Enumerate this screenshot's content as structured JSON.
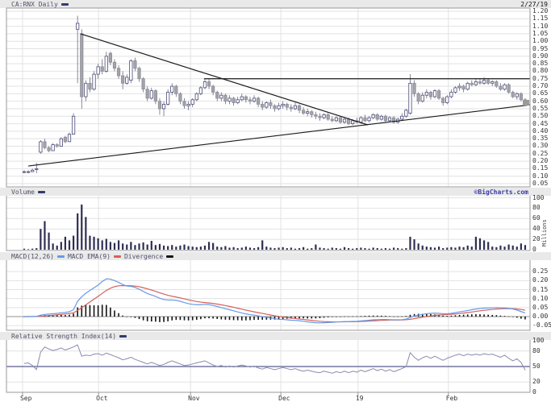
{
  "header": {
    "symbol": "CA:RNX Daily",
    "date": "2/27/19"
  },
  "panels": {
    "volume": {
      "label": "Volume",
      "watermark": "©BigCharts.com",
      "unit": "Millions"
    },
    "macd": {
      "macd_label": "MACD(12,26)",
      "ema_label": "MACD EMA(9)",
      "div_label": "Divergence"
    },
    "rsi": {
      "label": "Relative Strength Index(14)"
    }
  },
  "colors": {
    "header_bg": "#e9e9e9",
    "accent_navy": "#333a6e",
    "grid": "#e2e2e2",
    "border": "#999999",
    "up_candle": "#ffffff",
    "down_candle": "#a3a3ab",
    "candle_outline": "#4a4a78",
    "wick": "#6a6a88",
    "volume_bar": "#2e2e52",
    "macd_line": "#6699e8",
    "macd_ema": "#d4605a",
    "divergence": "#141414",
    "macd_zero": "#777777",
    "rsi_line": "#8a8aae",
    "rsi_mid": "#5b5b8e",
    "trendline": "#1a1a1a",
    "watermark": "#3a3aa8",
    "last_price_marker": "#9a9a9a",
    "text": "#222222"
  },
  "chart_data": {
    "type": "candlestick",
    "symbol": "CA:RNX",
    "interval": "Daily",
    "as_of_date": "2/27/19",
    "x_months": [
      {
        "label": "Sep",
        "day": -0.4
      },
      {
        "label": "Oct",
        "day": 18.1
      },
      {
        "label": "Nov",
        "day": 40.5
      },
      {
        "label": "Dec",
        "day": 62.5
      },
      {
        "label": "19",
        "day": 81.3
      },
      {
        "label": "Feb",
        "day": 103.3
      }
    ],
    "price_panel": {
      "ylim": [
        0.05,
        1.2
      ],
      "yticks": [
        1.2,
        1.15,
        1.1,
        1.05,
        1.0,
        0.95,
        0.9,
        0.85,
        0.8,
        0.75,
        0.7,
        0.65,
        0.6,
        0.55,
        0.5,
        0.45,
        0.4,
        0.35,
        0.3,
        0.25,
        0.2,
        0.15,
        0.1,
        0.05
      ],
      "last_price": 0.59,
      "trendlines": [
        {
          "name": "descending-resistance",
          "day1": 13.7,
          "price1": 1.05,
          "day2": 83.7,
          "price2": 0.442
        },
        {
          "name": "ascending-support",
          "day1": 1.0,
          "price1": 0.168,
          "day2": 123.2,
          "price2": 0.576
        },
        {
          "name": "horizontal-resistance",
          "day1": 43.8,
          "price1": 0.75,
          "day2": 123.2,
          "price2": 0.75
        }
      ],
      "candles_ohlc": [
        [
          0.13,
          0.14,
          0.12,
          0.13
        ],
        [
          0.13,
          0.14,
          0.12,
          0.13
        ],
        [
          0.13,
          0.15,
          0.13,
          0.14
        ],
        [
          0.15,
          0.19,
          0.12,
          0.15
        ],
        [
          0.26,
          0.34,
          0.25,
          0.33
        ],
        [
          0.33,
          0.35,
          0.28,
          0.29
        ],
        [
          0.29,
          0.3,
          0.26,
          0.27
        ],
        [
          0.27,
          0.32,
          0.27,
          0.31
        ],
        [
          0.31,
          0.32,
          0.29,
          0.3
        ],
        [
          0.3,
          0.36,
          0.3,
          0.35
        ],
        [
          0.36,
          0.37,
          0.32,
          0.33
        ],
        [
          0.33,
          0.39,
          0.33,
          0.38
        ],
        [
          0.38,
          0.52,
          0.38,
          0.5
        ],
        [
          1.08,
          1.17,
          0.72,
          1.12
        ],
        [
          1.05,
          1.08,
          0.55,
          0.63
        ],
        [
          0.63,
          0.74,
          0.6,
          0.72
        ],
        [
          0.72,
          0.76,
          0.66,
          0.68
        ],
        [
          0.68,
          0.8,
          0.67,
          0.78
        ],
        [
          0.78,
          0.85,
          0.75,
          0.83
        ],
        [
          0.83,
          0.88,
          0.78,
          0.8
        ],
        [
          0.8,
          0.93,
          0.79,
          0.9
        ],
        [
          0.92,
          0.93,
          0.84,
          0.86
        ],
        [
          0.86,
          0.88,
          0.8,
          0.82
        ],
        [
          0.82,
          0.84,
          0.75,
          0.77
        ],
        [
          0.77,
          0.8,
          0.68,
          0.72
        ],
        [
          0.72,
          0.78,
          0.71,
          0.76
        ],
        [
          0.74,
          0.88,
          0.72,
          0.87
        ],
        [
          0.87,
          0.89,
          0.8,
          0.82
        ],
        [
          0.82,
          0.83,
          0.73,
          0.75
        ],
        [
          0.75,
          0.76,
          0.66,
          0.68
        ],
        [
          0.68,
          0.7,
          0.6,
          0.62
        ],
        [
          0.62,
          0.69,
          0.61,
          0.67
        ],
        [
          0.67,
          0.68,
          0.58,
          0.6
        ],
        [
          0.6,
          0.62,
          0.51,
          0.55
        ],
        [
          0.55,
          0.6,
          0.5,
          0.58
        ],
        [
          0.58,
          0.68,
          0.57,
          0.66
        ],
        [
          0.66,
          0.72,
          0.64,
          0.7
        ],
        [
          0.7,
          0.71,
          0.63,
          0.65
        ],
        [
          0.65,
          0.66,
          0.58,
          0.6
        ],
        [
          0.6,
          0.62,
          0.55,
          0.57
        ],
        [
          0.57,
          0.6,
          0.54,
          0.58
        ],
        [
          0.58,
          0.62,
          0.56,
          0.61
        ],
        [
          0.61,
          0.66,
          0.6,
          0.65
        ],
        [
          0.65,
          0.7,
          0.64,
          0.69
        ],
        [
          0.69,
          0.75,
          0.68,
          0.73
        ],
        [
          0.73,
          0.75,
          0.68,
          0.7
        ],
        [
          0.7,
          0.71,
          0.64,
          0.66
        ],
        [
          0.66,
          0.67,
          0.6,
          0.62
        ],
        [
          0.62,
          0.66,
          0.6,
          0.64
        ],
        [
          0.64,
          0.65,
          0.58,
          0.6
        ],
        [
          0.6,
          0.64,
          0.58,
          0.62
        ],
        [
          0.62,
          0.63,
          0.57,
          0.59
        ],
        [
          0.59,
          0.63,
          0.58,
          0.61
        ],
        [
          0.61,
          0.65,
          0.6,
          0.63
        ],
        [
          0.63,
          0.64,
          0.59,
          0.61
        ],
        [
          0.61,
          0.63,
          0.58,
          0.6
        ],
        [
          0.6,
          0.64,
          0.59,
          0.62
        ],
        [
          0.62,
          0.63,
          0.56,
          0.58
        ],
        [
          0.58,
          0.6,
          0.54,
          0.56
        ],
        [
          0.56,
          0.6,
          0.55,
          0.59
        ],
        [
          0.59,
          0.61,
          0.55,
          0.57
        ],
        [
          0.57,
          0.58,
          0.53,
          0.55
        ],
        [
          0.55,
          0.59,
          0.54,
          0.57
        ],
        [
          0.57,
          0.6,
          0.55,
          0.58
        ],
        [
          0.58,
          0.59,
          0.54,
          0.56
        ],
        [
          0.56,
          0.58,
          0.53,
          0.55
        ],
        [
          0.55,
          0.59,
          0.54,
          0.57
        ],
        [
          0.57,
          0.58,
          0.52,
          0.54
        ],
        [
          0.54,
          0.56,
          0.51,
          0.52
        ],
        [
          0.52,
          0.55,
          0.5,
          0.53
        ],
        [
          0.53,
          0.54,
          0.49,
          0.51
        ],
        [
          0.51,
          0.53,
          0.48,
          0.5
        ],
        [
          0.5,
          0.52,
          0.47,
          0.49
        ],
        [
          0.49,
          0.52,
          0.48,
          0.51
        ],
        [
          0.51,
          0.52,
          0.47,
          0.48
        ],
        [
          0.48,
          0.5,
          0.46,
          0.47
        ],
        [
          0.47,
          0.5,
          0.46,
          0.49
        ],
        [
          0.49,
          0.5,
          0.45,
          0.46
        ],
        [
          0.46,
          0.49,
          0.45,
          0.48
        ],
        [
          0.48,
          0.49,
          0.44,
          0.45
        ],
        [
          0.45,
          0.48,
          0.44,
          0.47
        ],
        [
          0.47,
          0.49,
          0.45,
          0.46
        ],
        [
          0.46,
          0.5,
          0.45,
          0.49
        ],
        [
          0.49,
          0.51,
          0.46,
          0.47
        ],
        [
          0.47,
          0.5,
          0.46,
          0.49
        ],
        [
          0.49,
          0.52,
          0.48,
          0.51
        ],
        [
          0.51,
          0.52,
          0.47,
          0.48
        ],
        [
          0.48,
          0.51,
          0.47,
          0.5
        ],
        [
          0.5,
          0.51,
          0.46,
          0.47
        ],
        [
          0.47,
          0.5,
          0.46,
          0.49
        ],
        [
          0.49,
          0.5,
          0.45,
          0.46
        ],
        [
          0.46,
          0.49,
          0.45,
          0.48
        ],
        [
          0.48,
          0.52,
          0.47,
          0.5
        ],
        [
          0.5,
          0.55,
          0.49,
          0.54
        ],
        [
          0.52,
          0.78,
          0.51,
          0.72
        ],
        [
          0.72,
          0.74,
          0.63,
          0.65
        ],
        [
          0.65,
          0.66,
          0.58,
          0.6
        ],
        [
          0.6,
          0.66,
          0.59,
          0.64
        ],
        [
          0.64,
          0.68,
          0.62,
          0.66
        ],
        [
          0.66,
          0.67,
          0.61,
          0.63
        ],
        [
          0.63,
          0.68,
          0.62,
          0.67
        ],
        [
          0.67,
          0.68,
          0.61,
          0.62
        ],
        [
          0.62,
          0.63,
          0.57,
          0.59
        ],
        [
          0.59,
          0.64,
          0.58,
          0.63
        ],
        [
          0.63,
          0.68,
          0.62,
          0.66
        ],
        [
          0.66,
          0.7,
          0.65,
          0.69
        ],
        [
          0.69,
          0.72,
          0.67,
          0.7
        ],
        [
          0.7,
          0.71,
          0.66,
          0.68
        ],
        [
          0.68,
          0.73,
          0.67,
          0.72
        ],
        [
          0.72,
          0.74,
          0.7,
          0.71
        ],
        [
          0.71,
          0.75,
          0.7,
          0.73
        ],
        [
          0.73,
          0.75,
          0.71,
          0.72
        ],
        [
          0.72,
          0.76,
          0.71,
          0.74
        ],
        [
          0.74,
          0.75,
          0.71,
          0.72
        ],
        [
          0.72,
          0.74,
          0.7,
          0.73
        ],
        [
          0.73,
          0.74,
          0.69,
          0.7
        ],
        [
          0.7,
          0.72,
          0.67,
          0.68
        ],
        [
          0.68,
          0.72,
          0.67,
          0.71
        ],
        [
          0.71,
          0.72,
          0.65,
          0.66
        ],
        [
          0.66,
          0.67,
          0.62,
          0.63
        ],
        [
          0.63,
          0.66,
          0.61,
          0.65
        ],
        [
          0.65,
          0.66,
          0.6,
          0.61
        ],
        [
          0.61,
          0.62,
          0.57,
          0.59
        ]
      ]
    },
    "volume_panel": {
      "ylim": [
        0,
        100
      ],
      "yticks": [
        100,
        80,
        60,
        40,
        20,
        0
      ],
      "unit": "Millions",
      "values": [
        2,
        1,
        2,
        3,
        40,
        55,
        33,
        12,
        8,
        15,
        25,
        18,
        27,
        70,
        87,
        63,
        27,
        25,
        22,
        18,
        21,
        15,
        13,
        18,
        12,
        10,
        15,
        9,
        12,
        14,
        10,
        17,
        9,
        11,
        8,
        7,
        9,
        6,
        8,
        10,
        7,
        6,
        5,
        6,
        8,
        15,
        13,
        6,
        5,
        7,
        4,
        5,
        3,
        4,
        6,
        4,
        3,
        5,
        18,
        6,
        4,
        3,
        4,
        5,
        3,
        4,
        2,
        3,
        5,
        2,
        3,
        10,
        4,
        3,
        2,
        4,
        3,
        2,
        5,
        3,
        2,
        3,
        4,
        3,
        2,
        4,
        3,
        2,
        3,
        2,
        4,
        3,
        2,
        3,
        25,
        20,
        12,
        8,
        6,
        5,
        4,
        6,
        3,
        4,
        5,
        4,
        6,
        5,
        8,
        6,
        25,
        22,
        18,
        15,
        6,
        5,
        8,
        6,
        10,
        8,
        6,
        12,
        9
      ]
    },
    "macd_panel": {
      "ylim": [
        -0.05,
        0.25
      ],
      "yticks": [
        0.25,
        0.2,
        0.15,
        0.1,
        0.05,
        0.0,
        -0.05
      ],
      "ema_period": 9,
      "macd": [
        0.0,
        0.0,
        0.001,
        0.001,
        0.008,
        0.012,
        0.014,
        0.016,
        0.018,
        0.021,
        0.023,
        0.027,
        0.038,
        0.085,
        0.11,
        0.13,
        0.145,
        0.16,
        0.175,
        0.195,
        0.21,
        0.208,
        0.2,
        0.19,
        0.178,
        0.17,
        0.168,
        0.162,
        0.152,
        0.14,
        0.128,
        0.12,
        0.112,
        0.102,
        0.095,
        0.092,
        0.092,
        0.09,
        0.085,
        0.078,
        0.072,
        0.068,
        0.066,
        0.066,
        0.068,
        0.066,
        0.062,
        0.056,
        0.05,
        0.044,
        0.038,
        0.032,
        0.026,
        0.02,
        0.015,
        0.011,
        0.008,
        0.004,
        0.0,
        -0.004,
        -0.008,
        -0.012,
        -0.015,
        -0.016,
        -0.018,
        -0.02,
        -0.021,
        -0.023,
        -0.026,
        -0.029,
        -0.032,
        -0.034,
        -0.035,
        -0.034,
        -0.033,
        -0.032,
        -0.03,
        -0.029,
        -0.028,
        -0.028,
        -0.027,
        -0.026,
        -0.024,
        -0.022,
        -0.02,
        -0.018,
        -0.017,
        -0.016,
        -0.016,
        -0.017,
        -0.018,
        -0.018,
        -0.017,
        -0.014,
        -0.005,
        0.003,
        0.008,
        0.012,
        0.016,
        0.018,
        0.019,
        0.018,
        0.016,
        0.016,
        0.018,
        0.022,
        0.026,
        0.03,
        0.034,
        0.038,
        0.042,
        0.045,
        0.047,
        0.048,
        0.049,
        0.05,
        0.049,
        0.048,
        0.046,
        0.042,
        0.036,
        0.028,
        0.02
      ]
    },
    "rsi_panel": {
      "ylim": [
        0,
        100
      ],
      "yticks": [
        100,
        80,
        50,
        20,
        0
      ],
      "mid_level": 50,
      "values": [
        56,
        57,
        52,
        44,
        78,
        88,
        84,
        81,
        83,
        86,
        82,
        85,
        88,
        92,
        70,
        72,
        71,
        74,
        75,
        72,
        76,
        73,
        70,
        67,
        63,
        65,
        68,
        64,
        61,
        58,
        55,
        58,
        55,
        52,
        54,
        58,
        61,
        58,
        55,
        52,
        53,
        55,
        57,
        59,
        61,
        57,
        53,
        50,
        52,
        49,
        51,
        49,
        51,
        53,
        51,
        49,
        51,
        47,
        45,
        48,
        46,
        44,
        46,
        48,
        46,
        44,
        46,
        43,
        41,
        43,
        41,
        39,
        38,
        41,
        39,
        37,
        40,
        38,
        41,
        38,
        41,
        39,
        43,
        40,
        43,
        46,
        42,
        45,
        41,
        44,
        40,
        43,
        46,
        50,
        77,
        68,
        62,
        67,
        70,
        66,
        70,
        66,
        62,
        66,
        69,
        72,
        74,
        71,
        74,
        72,
        74,
        72,
        75,
        73,
        74,
        71,
        68,
        72,
        66,
        61,
        65,
        58,
        43
      ]
    }
  }
}
